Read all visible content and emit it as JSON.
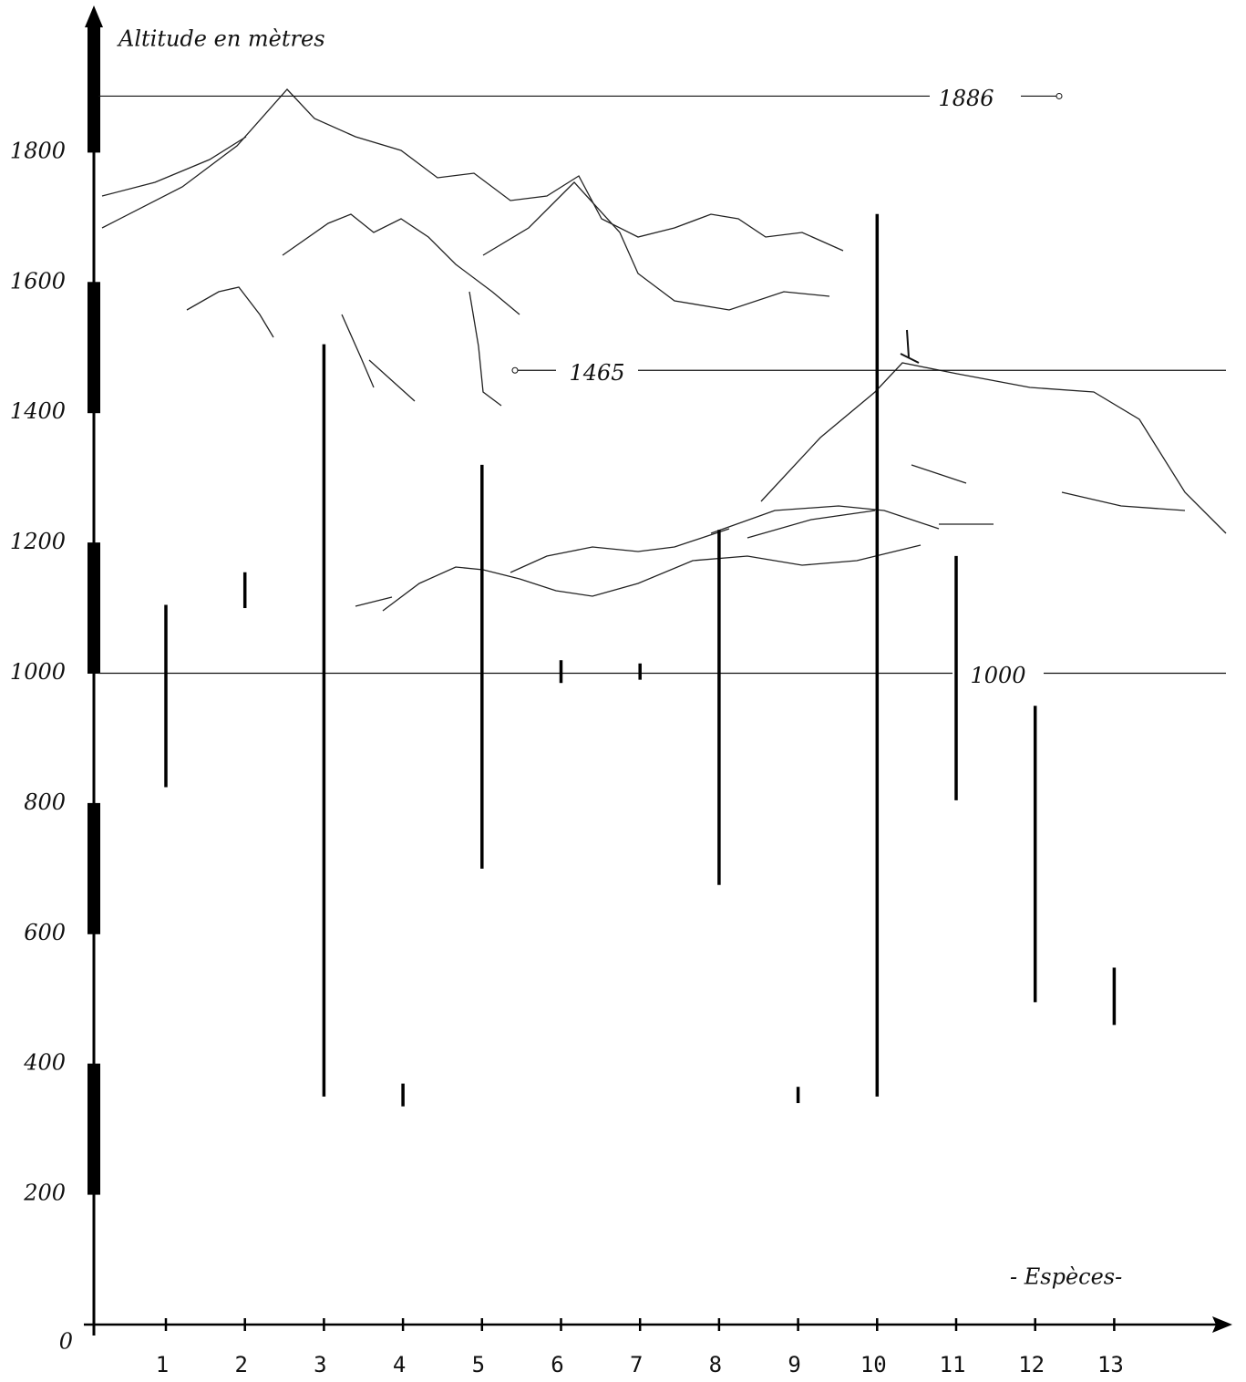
{
  "chart_data": {
    "type": "range",
    "y_label": "Altitude  en mètres",
    "x_label": "- Espèces-",
    "categories": [
      "1",
      "2",
      "3",
      "4",
      "5",
      "6",
      "7",
      "8",
      "9",
      "10",
      "11",
      "12",
      "13"
    ],
    "low": [
      825,
      1100,
      350,
      335,
      700,
      985,
      990,
      675,
      340,
      350,
      805,
      495,
      460
    ],
    "high": [
      1105,
      1155,
      1505,
      370,
      1320,
      1020,
      1015,
      1220,
      365,
      1705,
      1180,
      950,
      548
    ],
    "color": "#000000",
    "ylim": [
      0,
      2000
    ],
    "yticks": [
      0,
      200,
      400,
      600,
      800,
      1000,
      1200,
      1400,
      1600,
      1800
    ],
    "reference_lines": [
      1886,
      1465,
      1000
    ]
  }
}
